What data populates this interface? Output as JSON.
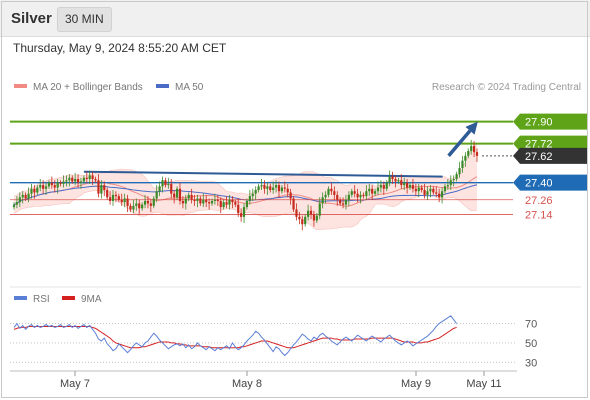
{
  "header": {
    "symbol": "Silver",
    "timeframe": "30 MIN"
  },
  "datetime": "Thursday, May 9, 2024 8:55:20 AM CET",
  "credit": "Research © 2024 Trading Central",
  "colors": {
    "support": "#d9534f",
    "resistance": "#5ea318",
    "pivot": "#1f6bb5",
    "price_tag": "#333333",
    "trendline": "#2e5a96",
    "arrow": "#2e5a96",
    "bollinger_fill": "#fde4e1",
    "ma20": "#f08a82",
    "ma50": "#4a6cc7",
    "rsi": "#5b7fd6",
    "rsi_ma": "#d42020",
    "candle_up": "#3a8a28",
    "candle_down": "#c62a1c"
  },
  "chart_data": [
    {
      "type": "candlestick",
      "ylim": [
        26.57,
        28.11
      ],
      "x_ticks": [
        "May 7",
        "May 8",
        "May 9",
        "May 11"
      ],
      "legend": [
        {
          "label": "MA 20 + Bollinger Bands",
          "color": "#f08a82"
        },
        {
          "label": "MA 50",
          "color": "#2e5a96"
        }
      ],
      "levels": [
        {
          "value": 27.9,
          "label": "27.90",
          "kind": "resistance"
        },
        {
          "value": 27.72,
          "label": "27.72",
          "kind": "resistance"
        },
        {
          "value": 27.62,
          "label": "27.62",
          "kind": "last_price"
        },
        {
          "value": 27.4,
          "label": "27.40",
          "kind": "pivot"
        },
        {
          "value": 27.26,
          "label": "27.26",
          "kind": "support"
        },
        {
          "value": 27.14,
          "label": "27.14",
          "kind": "support"
        }
      ],
      "trendline": [
        [
          0.147,
          27.49
        ],
        [
          0.86,
          27.45
        ]
      ],
      "projection_arrow": [
        [
          0.872,
          27.62
        ],
        [
          0.93,
          27.9
        ]
      ],
      "close": [
        27.22,
        27.24,
        27.28,
        27.3,
        27.27,
        27.31,
        27.35,
        27.32,
        27.36,
        27.38,
        27.35,
        27.37,
        27.4,
        27.38,
        27.36,
        27.4,
        27.39,
        27.41,
        27.42,
        27.44,
        27.41,
        27.43,
        27.4,
        27.41,
        27.44,
        27.43,
        27.46,
        27.43,
        27.42,
        27.31,
        27.38,
        27.34,
        27.28,
        27.25,
        27.3,
        27.29,
        27.26,
        27.24,
        27.27,
        27.21,
        27.18,
        27.21,
        27.23,
        27.19,
        27.22,
        27.25,
        27.23,
        27.21,
        27.27,
        27.33,
        27.37,
        27.42,
        27.38,
        27.39,
        27.31,
        27.28,
        27.35,
        27.25,
        27.23,
        27.27,
        27.3,
        27.26,
        27.25,
        27.27,
        27.23,
        27.26,
        27.24,
        27.23,
        27.25,
        27.26,
        27.25,
        27.2,
        27.24,
        27.22,
        27.26,
        27.24,
        27.22,
        27.15,
        27.12,
        27.2,
        27.25,
        27.29,
        27.31,
        27.34,
        27.37,
        27.38,
        27.35,
        27.37,
        27.34,
        27.36,
        27.38,
        27.33,
        27.36,
        27.35,
        27.32,
        27.27,
        27.18,
        27.12,
        27.1,
        27.06,
        27.12,
        27.17,
        27.14,
        27.09,
        27.13,
        27.23,
        27.28,
        27.3,
        27.35,
        27.33,
        27.3,
        27.26,
        27.23,
        27.22,
        27.26,
        27.3,
        27.33,
        27.31,
        27.28,
        27.3,
        27.29,
        27.33,
        27.35,
        27.31,
        27.33,
        27.36,
        27.38,
        27.35,
        27.4,
        27.45,
        27.43,
        27.41,
        27.42,
        27.38,
        27.4,
        27.36,
        27.38,
        27.35,
        27.33,
        27.36,
        27.34,
        27.3,
        27.33,
        27.35,
        27.32,
        27.31,
        27.28,
        27.33,
        27.37,
        27.38,
        27.42,
        27.43,
        27.47,
        27.52,
        27.58,
        27.62,
        27.66,
        27.7,
        27.65,
        27.62
      ]
    },
    {
      "type": "line",
      "ylim": [
        20,
        85
      ],
      "y_ticks": [
        70,
        50,
        30
      ],
      "legend": [
        {
          "label": "RSI",
          "color": "#5b7fd6"
        },
        {
          "label": "9MA",
          "color": "#d42020"
        }
      ],
      "series": [
        {
          "name": "RSI",
          "values": [
            66,
            70,
            65,
            68,
            64,
            67,
            69,
            66,
            68,
            66,
            67,
            69,
            67,
            68,
            66,
            67,
            69,
            66,
            67,
            69,
            66,
            68,
            65,
            67,
            69,
            66,
            68,
            64,
            60,
            54,
            52,
            55,
            49,
            46,
            42,
            44,
            49,
            46,
            43,
            40,
            43,
            47,
            50,
            48,
            46,
            50,
            52,
            56,
            60,
            57,
            53,
            50,
            47,
            44,
            46,
            48,
            49,
            47,
            49,
            45,
            48,
            44,
            46,
            50,
            47,
            45,
            43,
            46,
            44,
            42,
            45,
            43,
            45,
            47,
            44,
            50,
            46,
            43,
            45,
            48,
            52,
            55,
            58,
            62,
            60,
            56,
            53,
            49,
            45,
            41,
            46,
            44,
            40,
            37,
            40,
            44,
            48,
            51,
            55,
            59,
            57,
            54,
            52,
            56,
            54,
            58,
            60,
            57,
            55,
            52,
            50,
            48,
            51,
            54,
            56,
            54,
            52,
            55,
            58,
            56,
            54,
            52,
            55,
            57,
            55,
            53,
            51,
            54,
            56,
            58,
            55,
            52,
            50,
            48,
            50,
            52,
            50,
            47,
            49,
            51,
            53,
            55,
            57,
            60,
            63,
            67,
            70,
            72,
            74,
            76,
            78,
            74,
            70
          ]
        },
        {
          "name": "9MA",
          "values": [
            64,
            65,
            66,
            66,
            66,
            67,
            67,
            67,
            67,
            67,
            67,
            67,
            67,
            67,
            67,
            67,
            67,
            67,
            67,
            67,
            67,
            67,
            67,
            67,
            67,
            67,
            67,
            66,
            65,
            63,
            61,
            59,
            57,
            55,
            52,
            50,
            49,
            48,
            47,
            46,
            45,
            45,
            45,
            45,
            46,
            46,
            47,
            48,
            49,
            50,
            51,
            51,
            51,
            51,
            50,
            50,
            49,
            49,
            48,
            48,
            47,
            47,
            47,
            47,
            47,
            46,
            46,
            46,
            45,
            45,
            45,
            45,
            45,
            45,
            45,
            45,
            45,
            45,
            46,
            46,
            47,
            48,
            49,
            50,
            51,
            52,
            52,
            52,
            51,
            50,
            49,
            48,
            47,
            46,
            45,
            45,
            45,
            46,
            47,
            48,
            49,
            50,
            51,
            52,
            53,
            54,
            55,
            55,
            55,
            55,
            54,
            54,
            53,
            53,
            53,
            53,
            53,
            54,
            54,
            54,
            54,
            54,
            54,
            55,
            55,
            55,
            55,
            55,
            55,
            55,
            55,
            54,
            53,
            52,
            51,
            51,
            51,
            51,
            50,
            50,
            50,
            51,
            51,
            52,
            53,
            54,
            55,
            57,
            59,
            61,
            63,
            65,
            66
          ]
        }
      ]
    }
  ]
}
